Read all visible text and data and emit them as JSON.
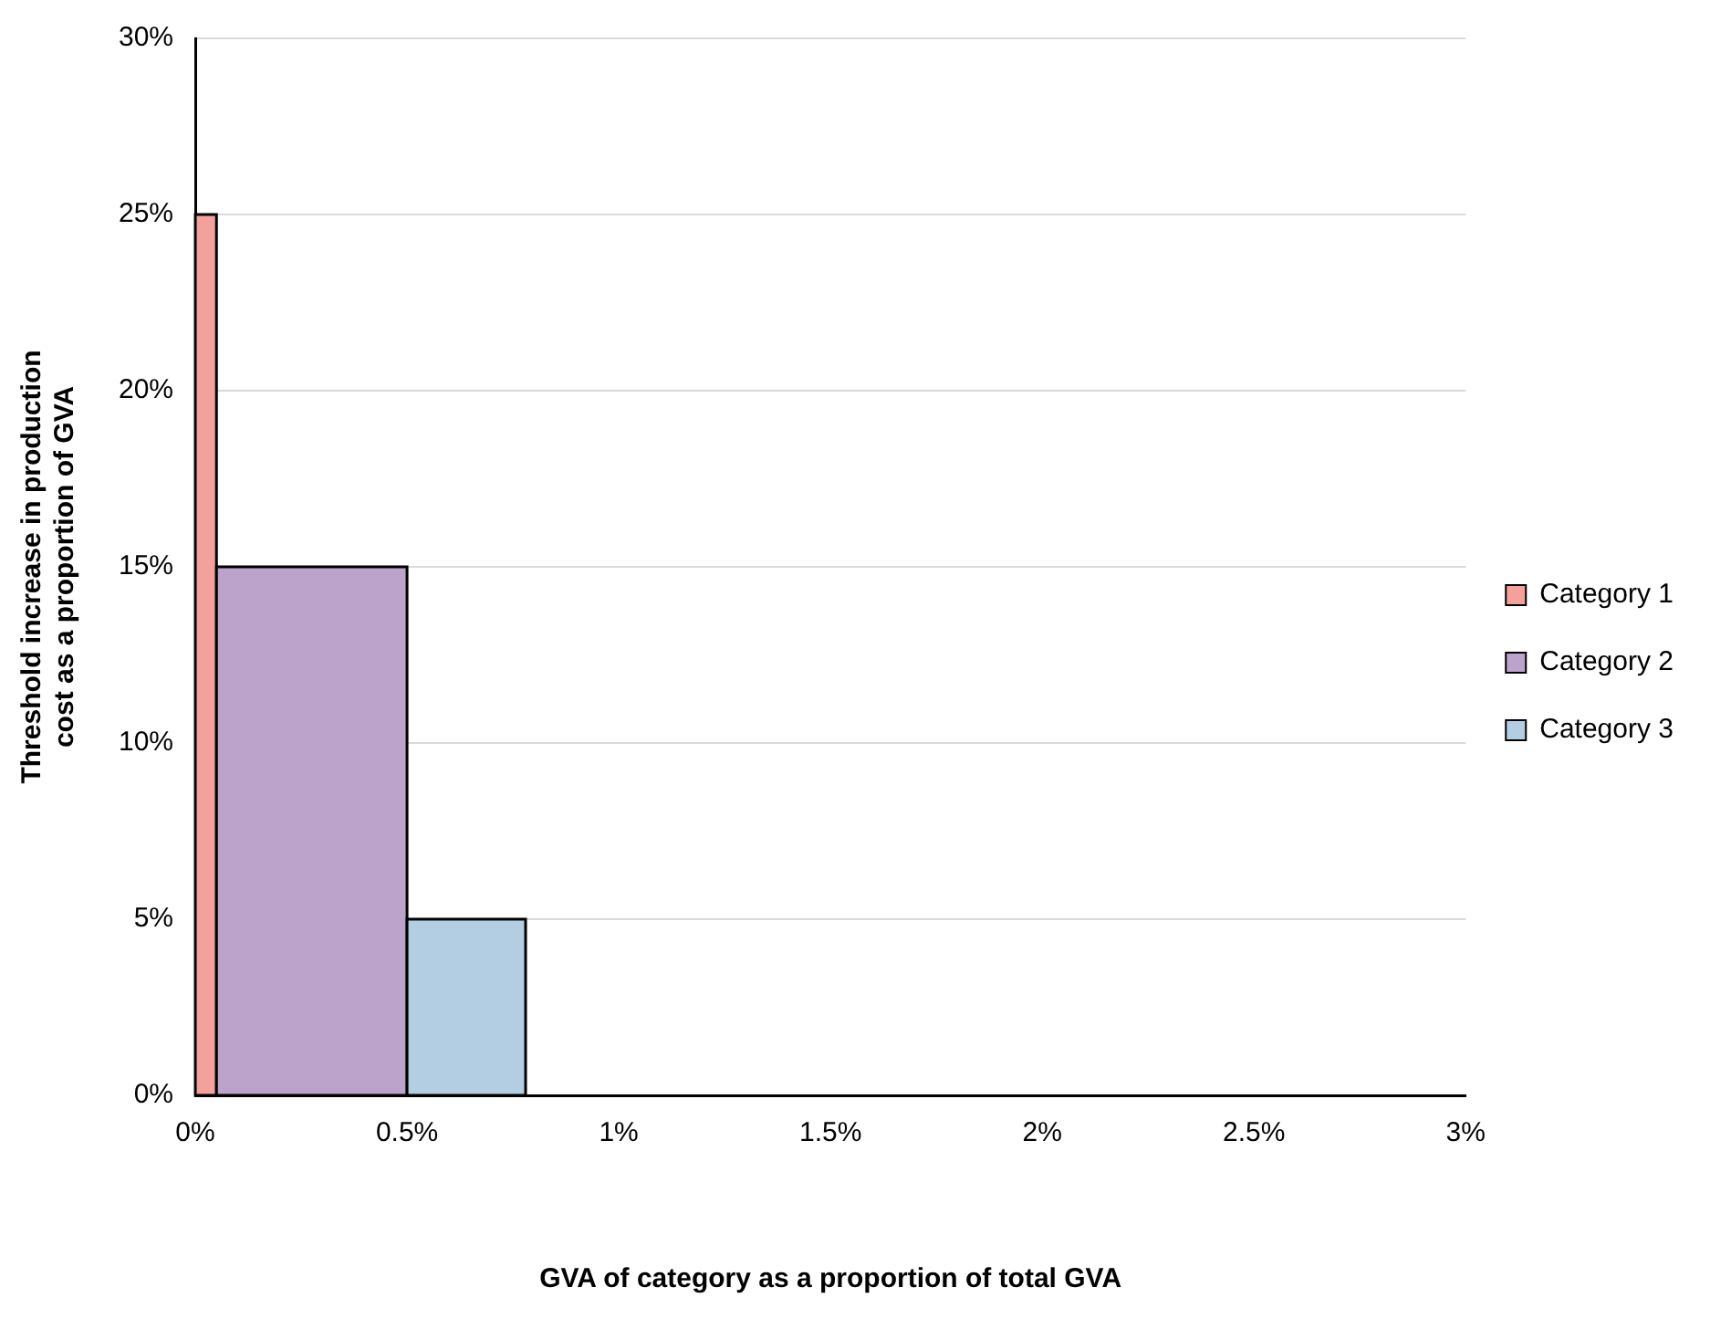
{
  "chart_data": {
    "type": "histogram",
    "xlabel": "GVA of category as a proportion of total GVA",
    "ylabel": "Threshold increase in production cost as a proportion of GVA",
    "bins": [
      0,
      0.05,
      0.5,
      0.78
    ],
    "series": [
      {
        "name": "Category 1",
        "color": "#f4a09c",
        "values": [
          25,
          null,
          null
        ]
      },
      {
        "name": "Category 2",
        "color": "#bca3cb",
        "values": [
          null,
          15,
          null
        ]
      },
      {
        "name": "Category 3",
        "color": "#b3cde3",
        "values": [
          null,
          null,
          5
        ]
      }
    ],
    "xlim": [
      0,
      3
    ],
    "xticks": [
      {
        "value": 0,
        "label": "0%"
      },
      {
        "value": 0.5,
        "label": "0.5%"
      },
      {
        "value": 1,
        "label": "1%"
      },
      {
        "value": 1.5,
        "label": "1.5%"
      },
      {
        "value": 2,
        "label": "2%"
      },
      {
        "value": 2.5,
        "label": "2.5%"
      },
      {
        "value": 3,
        "label": "3%"
      }
    ],
    "ylim": [
      0,
      30
    ],
    "yticks": [
      {
        "value": 0,
        "label": "0%"
      },
      {
        "value": 5,
        "label": "5%"
      },
      {
        "value": 10,
        "label": "10%"
      },
      {
        "value": 15,
        "label": "15%"
      },
      {
        "value": 20,
        "label": "20%"
      },
      {
        "value": 25,
        "label": "25%"
      },
      {
        "value": 30,
        "label": "30%"
      }
    ],
    "grid": "y",
    "legend": "right"
  }
}
